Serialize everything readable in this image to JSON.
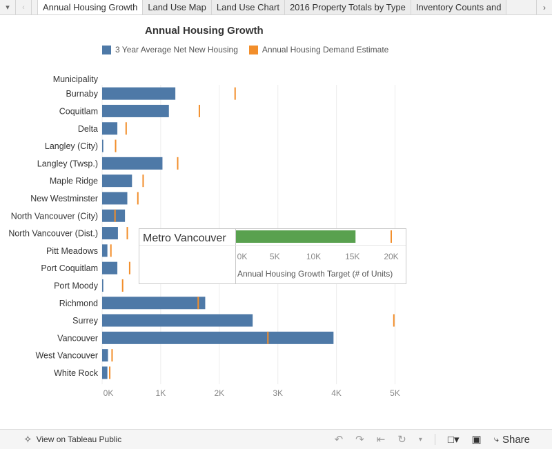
{
  "tabs": {
    "items": [
      "Annual Housing Growth",
      "Land Use Map",
      "Land Use Chart",
      "2016 Property Totals by Type",
      "Inventory Counts and"
    ],
    "active_index": 0
  },
  "chart_title": "Annual Housing Growth",
  "legend": [
    {
      "label": "3 Year Average Net New Housing",
      "color": "#4e79a7"
    },
    {
      "label": "Annual Housing Demand Estimate",
      "color": "#f28e2b"
    }
  ],
  "chart_data": [
    {
      "type": "bar",
      "row_header": "Municipality",
      "categories": [
        "Burnaby",
        "Coquitlam",
        "Delta",
        "Langley (City)",
        "Langley (Twsp.)",
        "Maple Ridge",
        "New Westminster",
        "North Vancouver (City)",
        "North Vancouver (Dist.)",
        "Pitt Meadows",
        "Port Coquitlam",
        "Port Moody",
        "Richmond",
        "Surrey",
        "Vancouver",
        "West Vancouver",
        "White Rock"
      ],
      "series": [
        {
          "name": "3 Year Average Net New Housing",
          "color": "#4e79a7",
          "values": [
            1250,
            1140,
            260,
            20,
            1030,
            510,
            430,
            390,
            270,
            90,
            260,
            20,
            1760,
            2570,
            3950,
            100,
            90
          ]
        },
        {
          "name": "Annual Housing Demand Estimate",
          "color": "#f28e2b",
          "marker": "tick",
          "values": [
            2270,
            1660,
            410,
            230,
            1290,
            700,
            610,
            220,
            430,
            150,
            470,
            350,
            1640,
            4980,
            2830,
            170,
            130
          ]
        }
      ],
      "x_ticks": [
        "0K",
        "1K",
        "2K",
        "3K",
        "4K",
        "5K"
      ],
      "xlim": [
        0,
        5000
      ],
      "grid": true
    },
    {
      "type": "bar",
      "categories": [
        "Metro Vancouver"
      ],
      "values": [
        15400
      ],
      "target_tick": 20000,
      "bar_color": "#59a14f",
      "target_color": "#f28e2b",
      "x_ticks": [
        "0K",
        "5K",
        "10K",
        "15K",
        "20K"
      ],
      "xlim": [
        0,
        20800
      ],
      "xlabel": "Annual Housing Growth Target (# of Units)"
    }
  ],
  "toolbar": {
    "view_label": "View on Tableau Public",
    "share_label": "Share"
  }
}
